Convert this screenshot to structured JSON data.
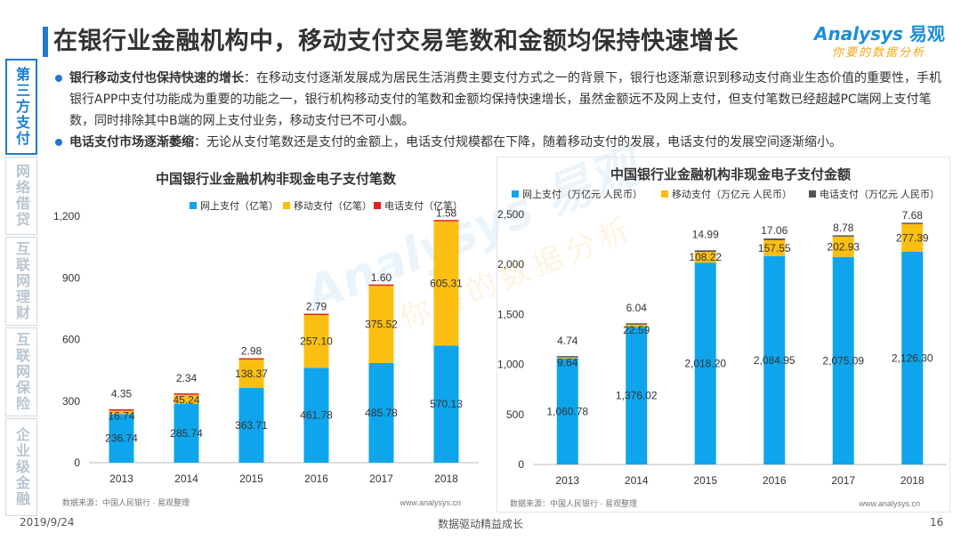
{
  "header": {
    "title": "在银行业金融机构中，移动支付交易笔数和金额均保持快速增长",
    "logo_brand": "Analysys",
    "logo_cn": "易观",
    "logo_slogan": "你要的数据分析"
  },
  "side_nav": [
    {
      "label": "第三方支付",
      "active": true
    },
    {
      "label": "网络借贷",
      "active": false
    },
    {
      "label": "互联网理财",
      "active": false
    },
    {
      "label": "互联网保险",
      "active": false
    },
    {
      "label": "企业级金融",
      "active": false
    }
  ],
  "bullets": [
    {
      "heading": "银行移动支付也保持快速的增长",
      "text": "：在移动支付逐渐发展成为居民生活消费主要支付方式之一的背景下，银行也逐渐意识到移动支付商业生态价值的重要性，手机银行APP中支付功能成为重要的功能之一，银行机构移动支付的笔数和金额均保持快速增长，虽然金额远不及网上支付，但支付笔数已经超越PC端网上支付笔数，同时排除其中B端的网上支付业务，移动支付已不可小觑。"
    },
    {
      "heading": "电话支付市场逐渐萎缩",
      "text": "：无论从支付笔数还是支付的金额上，电话支付规模都在下降，随着移动支付的发展，电话支付的发展空间逐渐缩小。"
    }
  ],
  "watermark": {
    "text1": "Analysys 易观",
    "text2": "你要的数据分析"
  },
  "chart_data": [
    {
      "type": "bar",
      "stacked": true,
      "title": "中国银行业金融机构非现金电子支付笔数",
      "categories": [
        "2013",
        "2014",
        "2015",
        "2016",
        "2017",
        "2018"
      ],
      "series": [
        {
          "name": "网上支付（亿笔）",
          "color": "#0ea5ec",
          "values": [
            236.74,
            285.74,
            363.71,
            461.78,
            485.78,
            570.13
          ]
        },
        {
          "name": "移动支付（亿笔）",
          "color": "#fbbf12",
          "values": [
            16.74,
            45.24,
            138.37,
            257.1,
            375.52,
            605.31
          ]
        },
        {
          "name": "电话支付（亿笔）",
          "color": "#e02020",
          "values": [
            4.35,
            2.34,
            2.98,
            2.79,
            1.6,
            1.58
          ]
        }
      ],
      "y_ticks": [
        "0",
        "300",
        "600",
        "900",
        "1,200"
      ],
      "ylim": [
        0,
        1200
      ],
      "legend": "top",
      "source": "数据来源：中国人民银行 · 易观整理",
      "site": "www.analysys.cn"
    },
    {
      "type": "bar",
      "stacked": true,
      "title": "中国银行业金融机构非现金电子支付金额",
      "categories": [
        "2013",
        "2014",
        "2015",
        "2016",
        "2017",
        "2018"
      ],
      "series": [
        {
          "name": "网上支付（万亿元 人民币）",
          "color": "#0ea5ec",
          "values": [
            1060.78,
            1376.02,
            2018.2,
            2084.95,
            2075.09,
            2126.3
          ]
        },
        {
          "name": "移动支付（万亿元 人民币）",
          "color": "#fbbf12",
          "values": [
            9.64,
            22.59,
            108.22,
            157.55,
            202.93,
            277.39
          ]
        },
        {
          "name": "电话支付（万亿元 人民币）",
          "color": "#555555",
          "values": [
            4.74,
            6.04,
            14.99,
            17.06,
            8.78,
            7.68
          ]
        }
      ],
      "y_ticks": [
        "0",
        "500",
        "1,000",
        "1,500",
        "2,000",
        "2,500"
      ],
      "ylim": [
        0,
        2500
      ],
      "legend": "top",
      "source": "数据来源：中国人民银行 · 易观整理",
      "site": "www.analysys.cn"
    }
  ],
  "footer": {
    "date": "2019/9/24",
    "center": "数据驱动精益成长",
    "page": "16"
  }
}
